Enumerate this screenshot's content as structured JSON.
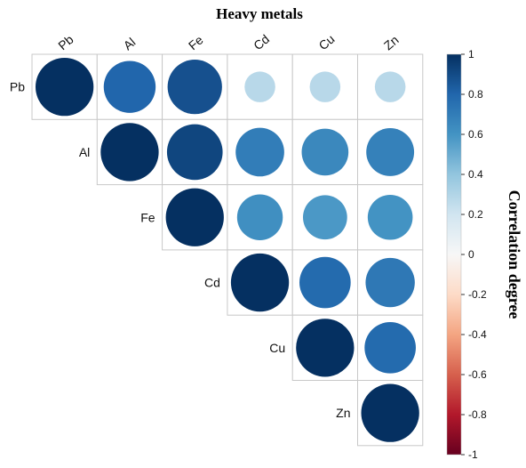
{
  "chart_data": {
    "type": "heatmap",
    "style": "correlation-circles-upper-triangle",
    "title": "Heavy metals",
    "variables": [
      "Pb",
      "Al",
      "Fe",
      "Cd",
      "Cu",
      "Zn"
    ],
    "matrix": [
      [
        1.0,
        0.8,
        0.88,
        0.28,
        0.28,
        0.28
      ],
      [
        0.8,
        1.0,
        0.92,
        0.7,
        0.65,
        0.68
      ],
      [
        0.88,
        0.92,
        1.0,
        0.62,
        0.58,
        0.6
      ],
      [
        0.28,
        0.7,
        0.62,
        1.0,
        0.78,
        0.72
      ],
      [
        0.28,
        0.65,
        0.58,
        0.78,
        1.0,
        0.78
      ],
      [
        0.28,
        0.68,
        0.6,
        0.72,
        0.78,
        1.0
      ]
    ],
    "colorbar": {
      "label": "Correlation degree",
      "ticks": [
        "1",
        "0.8",
        "0.6",
        "0.4",
        "0.2",
        "0",
        "-0.2",
        "-0.4",
        "-0.6",
        "-0.8",
        "-1"
      ],
      "range": [
        -1,
        1
      ],
      "colors": {
        "-1": "#67001f",
        "-0.6": "#d6604d",
        "-0.2": "#fddbc7",
        "0": "#f7f7f7",
        "0.2": "#d1e5f0",
        "0.6": "#4393c3",
        "1": "#053061"
      }
    },
    "grid": true,
    "legend": "right"
  }
}
